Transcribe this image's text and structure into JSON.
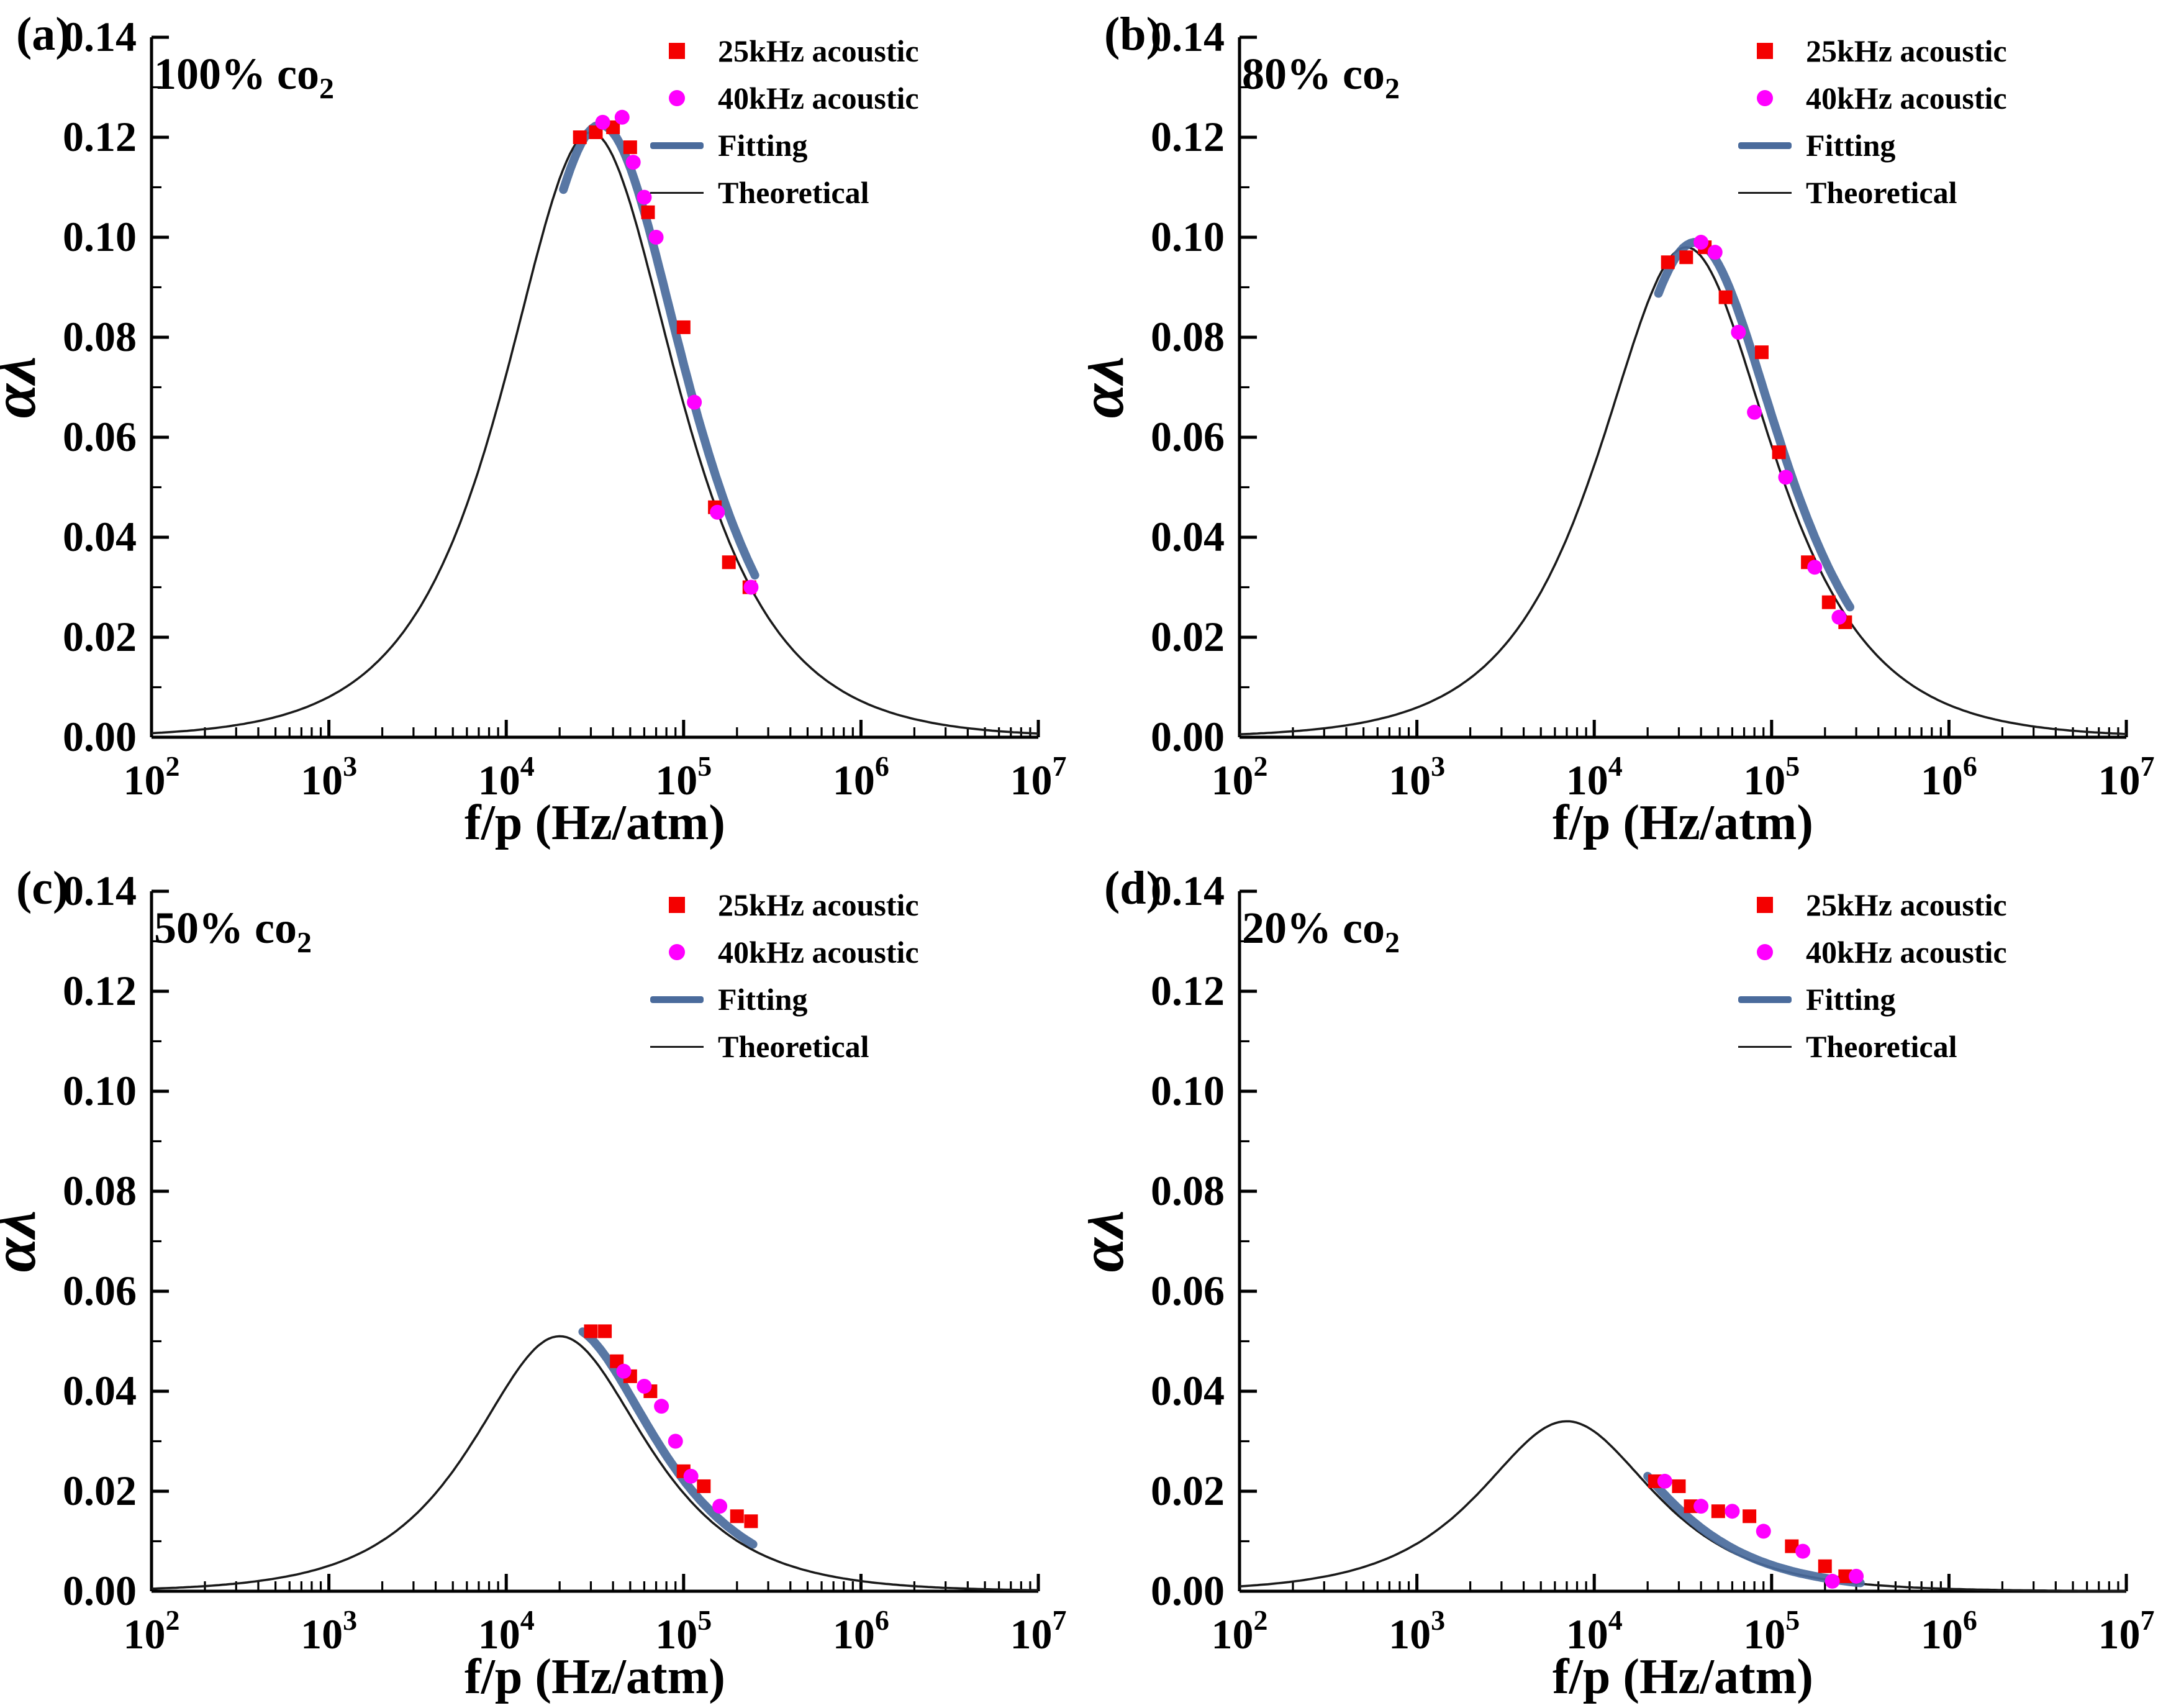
{
  "figure": {
    "background": "#ffffff",
    "xlabel": "f/p (Hz/atm)",
    "ylabel": "αλ",
    "x_log_min": 2,
    "x_log_max": 7,
    "ylim": [
      0,
      0.14
    ],
    "yticks": [
      0,
      0.02,
      0.04,
      0.06,
      0.08,
      0.1,
      0.12,
      0.14
    ],
    "xtick_exponents": [
      2,
      3,
      4,
      5,
      6,
      7
    ],
    "colors": {
      "axis": "#000000",
      "series_25khz": "#f40000",
      "series_40khz": "#ff00ff",
      "fitting": "#4a6b9c",
      "theoretical": "#1a1a1a"
    },
    "legend_labels": [
      "25kHz acoustic",
      "40kHz acoustic",
      "Fitting",
      "Theoretical"
    ]
  },
  "chart_data": [
    {
      "id": "a",
      "panel_label": "(a)",
      "gas_label": {
        "text": "100% co",
        "sub": "2"
      },
      "type": "line+scatter",
      "xlabel": "f/p (Hz/atm)",
      "ylabel": "αλ",
      "xscale": "log",
      "xlim": [
        100,
        10000000
      ],
      "ylim": [
        0,
        0.14
      ],
      "theoretical_peak": {
        "x": 30000,
        "y": 0.121
      },
      "fitting": {
        "peak_x": 34000,
        "peak_y": 0.1225,
        "x_range": [
          21000,
          260000
        ]
      },
      "series": [
        {
          "name": "25kHz acoustic",
          "marker": "square",
          "points": [
            [
              26000,
              0.12
            ],
            [
              32000,
              0.121
            ],
            [
              40000,
              0.122
            ],
            [
              50000,
              0.118
            ],
            [
              63000,
              0.105
            ],
            [
              100000,
              0.082
            ],
            [
              150000,
              0.046
            ],
            [
              180000,
              0.035
            ],
            [
              235000,
              0.03
            ]
          ]
        },
        {
          "name": "40kHz acoustic",
          "marker": "circle",
          "points": [
            [
              35000,
              0.123
            ],
            [
              45000,
              0.124
            ],
            [
              52000,
              0.115
            ],
            [
              60000,
              0.108
            ],
            [
              70000,
              0.1
            ],
            [
              115000,
              0.067
            ],
            [
              155000,
              0.045
            ],
            [
              240000,
              0.03
            ]
          ]
        }
      ]
    },
    {
      "id": "b",
      "panel_label": "(b)",
      "gas_label": {
        "text": "80% co",
        "sub": "2"
      },
      "type": "line+scatter",
      "xlabel": "f/p (Hz/atm)",
      "ylabel": "αλ",
      "xscale": "log",
      "xlim": [
        100,
        10000000
      ],
      "ylim": [
        0,
        0.14
      ],
      "theoretical_peak": {
        "x": 33000,
        "y": 0.098
      },
      "fitting": {
        "peak_x": 37000,
        "peak_y": 0.099,
        "x_range": [
          23000,
          280000
        ]
      },
      "series": [
        {
          "name": "25kHz acoustic",
          "marker": "square",
          "points": [
            [
              26000,
              0.095
            ],
            [
              33000,
              0.096
            ],
            [
              42000,
              0.098
            ],
            [
              55000,
              0.088
            ],
            [
              88000,
              0.077
            ],
            [
              110000,
              0.057
            ],
            [
              160000,
              0.035
            ],
            [
              210000,
              0.027
            ],
            [
              260000,
              0.023
            ]
          ]
        },
        {
          "name": "40kHz acoustic",
          "marker": "circle",
          "points": [
            [
              40000,
              0.099
            ],
            [
              48000,
              0.097
            ],
            [
              65000,
              0.081
            ],
            [
              80000,
              0.065
            ],
            [
              120000,
              0.052
            ],
            [
              175000,
              0.034
            ],
            [
              240000,
              0.024
            ]
          ]
        }
      ]
    },
    {
      "id": "c",
      "panel_label": "(c)",
      "gas_label": {
        "text": "50% co",
        "sub": "2"
      },
      "type": "line+scatter",
      "xlabel": "f/p (Hz/atm)",
      "ylabel": "αλ",
      "xscale": "log",
      "xlim": [
        100,
        10000000
      ],
      "ylim": [
        0,
        0.14
      ],
      "theoretical_peak": {
        "x": 20000,
        "y": 0.051
      },
      "fitting": {
        "peak_x": 22000,
        "peak_y": 0.053,
        "x_range": [
          27000,
          250000
        ]
      },
      "series": [
        {
          "name": "25kHz acoustic",
          "marker": "square",
          "points": [
            [
              30000,
              0.052
            ],
            [
              36000,
              0.052
            ],
            [
              42000,
              0.046
            ],
            [
              50000,
              0.043
            ],
            [
              65000,
              0.04
            ],
            [
              100000,
              0.024
            ],
            [
              130000,
              0.021
            ],
            [
              200000,
              0.015
            ],
            [
              240000,
              0.014
            ]
          ]
        },
        {
          "name": "40kHz acoustic",
          "marker": "circle",
          "points": [
            [
              46000,
              0.044
            ],
            [
              60000,
              0.041
            ],
            [
              75000,
              0.037
            ],
            [
              90000,
              0.03
            ],
            [
              110000,
              0.023
            ],
            [
              160000,
              0.017
            ]
          ]
        }
      ]
    },
    {
      "id": "d",
      "panel_label": "(d)",
      "gas_label": {
        "text": "20% co",
        "sub": "2"
      },
      "type": "line+scatter",
      "xlabel": "f/p (Hz/atm)",
      "ylabel": "αλ",
      "xscale": "log",
      "xlim": [
        100,
        10000000
      ],
      "ylim": [
        0,
        0.14
      ],
      "theoretical_peak": {
        "x": 7000,
        "y": 0.034
      },
      "fitting": {
        "peak_x": 7500,
        "peak_y": 0.035,
        "x_range": [
          20000,
          320000
        ]
      },
      "series": [
        {
          "name": "25kHz acoustic",
          "marker": "square",
          "points": [
            [
              22000,
              0.022
            ],
            [
              30000,
              0.021
            ],
            [
              35000,
              0.017
            ],
            [
              50000,
              0.016
            ],
            [
              75000,
              0.015
            ],
            [
              130000,
              0.009
            ],
            [
              200000,
              0.005
            ],
            [
              260000,
              0.003
            ]
          ]
        },
        {
          "name": "40kHz acoustic",
          "marker": "circle",
          "points": [
            [
              25000,
              0.022
            ],
            [
              40000,
              0.017
            ],
            [
              60000,
              0.016
            ],
            [
              90000,
              0.012
            ],
            [
              150000,
              0.008
            ],
            [
              220000,
              0.002
            ],
            [
              300000,
              0.003
            ]
          ]
        }
      ]
    }
  ]
}
